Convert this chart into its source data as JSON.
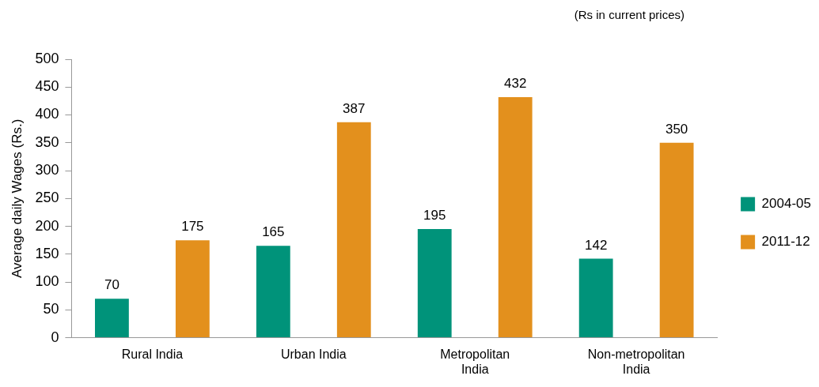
{
  "chart_data": {
    "type": "bar",
    "ylabel": "Average daily Wages (Rs.)",
    "annotations": [
      "(Rs in current prices)"
    ],
    "categories": [
      "Rural India",
      "Urban India",
      "Metropolitan India",
      "Non-metropolitan India"
    ],
    "series": [
      {
        "name": "2004-05",
        "color": "#00937a",
        "values": [
          70,
          165,
          195,
          142
        ]
      },
      {
        "name": "2011-12",
        "color": "#e3901d",
        "values": [
          175,
          387,
          432,
          350
        ]
      }
    ],
    "ylim": [
      0,
      500
    ],
    "yticks": [
      0,
      50,
      100,
      150,
      200,
      250,
      300,
      350,
      400,
      450,
      500
    ],
    "data_labels": true,
    "grid": false,
    "legend": "right"
  }
}
